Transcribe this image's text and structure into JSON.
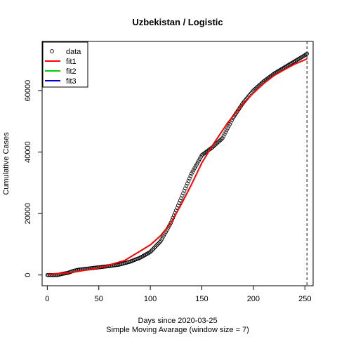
{
  "chart_data": {
    "type": "scatter",
    "title": "Uzbekistan / Logistic",
    "xlabel": "Days since 2020-03-25",
    "xlabel2": "Simple Moving Avarage (window size = 7)",
    "ylabel": "Cumulative Cases",
    "xlim": [
      -5,
      258
    ],
    "ylim": [
      -3500,
      76000
    ],
    "xticks": [
      0,
      50,
      100,
      150,
      200,
      250
    ],
    "xtick_labels": [
      "0",
      "50",
      "100",
      "150",
      "200",
      "250"
    ],
    "yticks": [
      0,
      20000,
      40000,
      60000
    ],
    "ytick_labels": [
      "0",
      "20000",
      "40000",
      "60000"
    ],
    "vline_x": 252,
    "legend_position": "top-left",
    "legend": [
      {
        "label": "data",
        "kind": "point",
        "color": "#000000"
      },
      {
        "label": "fit1",
        "kind": "line",
        "color": "#ff0000"
      },
      {
        "label": "fit2",
        "kind": "line",
        "color": "#00cc00"
      },
      {
        "label": "fit3",
        "kind": "line",
        "color": "#0000cc"
      }
    ],
    "data_anchor_points": {
      "x": [
        0,
        10,
        15,
        20,
        25,
        30,
        40,
        50,
        60,
        70,
        80,
        90,
        100,
        110,
        120,
        130,
        140,
        150,
        160,
        170,
        180,
        190,
        200,
        210,
        220,
        230,
        240,
        250,
        252
      ],
      "y": [
        0,
        0,
        400,
        700,
        1300,
        1700,
        2100,
        2500,
        2900,
        3400,
        4300,
        5600,
        7500,
        11000,
        17000,
        25000,
        33000,
        39000,
        41500,
        44500,
        51000,
        56000,
        60000,
        63000,
        65500,
        67500,
        69500,
        71500,
        72000
      ]
    },
    "series": [
      {
        "name": "data",
        "kind": "points",
        "color": "#000000",
        "x": [
          0,
          10,
          15,
          20,
          25,
          30,
          40,
          50,
          60,
          70,
          80,
          90,
          100,
          110,
          120,
          130,
          140,
          150,
          160,
          170,
          180,
          190,
          200,
          210,
          220,
          230,
          240,
          250,
          252
        ],
        "y": [
          0,
          0,
          400,
          700,
          1300,
          1700,
          2100,
          2500,
          2900,
          3400,
          4300,
          5600,
          7500,
          11000,
          17000,
          25000,
          33000,
          39000,
          41500,
          44500,
          51000,
          56000,
          60000,
          63000,
          65500,
          67500,
          69500,
          71500,
          72000
        ]
      },
      {
        "name": "fit1",
        "kind": "line",
        "color": "#ff0000",
        "x": [
          0,
          25,
          50,
          75,
          100,
          110,
          120,
          130,
          140,
          150,
          160,
          175,
          190,
          200,
          210,
          220,
          230,
          240,
          252
        ],
        "y": [
          200,
          900,
          2300,
          4700,
          9800,
          12800,
          17000,
          23000,
          29500,
          36500,
          42000,
          49500,
          55800,
          59200,
          62300,
          64900,
          66800,
          68600,
          70300
        ]
      }
    ]
  }
}
